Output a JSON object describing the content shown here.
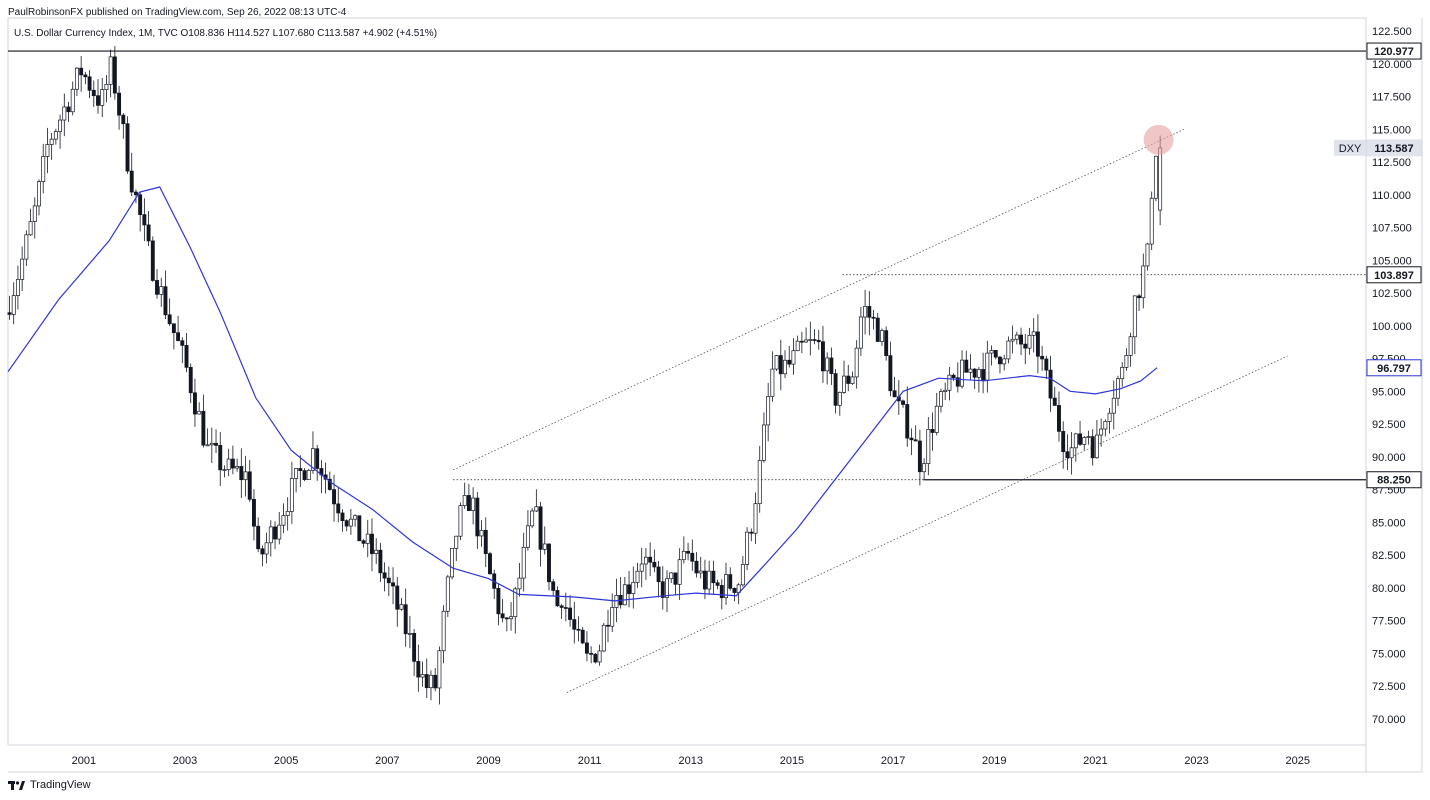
{
  "header": {
    "publisher_line": "PaulRobinsonFX published on TradingView.com, Sep 26, 2022 08:13 UTC-4",
    "symbol_line": "U.S. Dollar Currency Index, 1M, TVC  O108.836  H114.527  L107.680  C113.587  +4.902 (+4.51%)"
  },
  "footer": {
    "brand": "TradingView",
    "logo_icon": "tradingview-logo-icon"
  },
  "colors": {
    "ma_line": "#2e35d8",
    "candle": "#131722",
    "grid_border": "#d1d4dc",
    "circle_highlight": "#e8a0a0",
    "badge_ma": "#2e35d8",
    "badge_price": "#e0e3eb"
  },
  "chart_data": {
    "type": "candlestick",
    "instrument": "DXY",
    "timeframe": "1M",
    "x_range": [
      2000.0,
      2026.85
    ],
    "ylim": [
      68.0,
      123.5
    ],
    "x_ticks": [
      "2001",
      "2003",
      "2005",
      "2007",
      "2009",
      "2011",
      "2013",
      "2015",
      "2017",
      "2019",
      "2021",
      "2023",
      "2025"
    ],
    "y_ticks": [
      "70.000",
      "72.500",
      "75.000",
      "77.500",
      "80.000",
      "82.500",
      "85.000",
      "87.500",
      "90.000",
      "92.500",
      "95.000",
      "97.500",
      "100.000",
      "102.500",
      "105.000",
      "107.500",
      "110.000",
      "112.500",
      "115.000",
      "117.500",
      "120.000",
      "122.500"
    ],
    "price_anchors": [
      [
        2000.0,
        101.0
      ],
      [
        2000.3,
        104.5
      ],
      [
        2000.6,
        109.0
      ],
      [
        2000.85,
        114.0
      ],
      [
        2001.1,
        116.0
      ],
      [
        2001.5,
        119.5
      ],
      [
        2001.9,
        117.0
      ],
      [
        2002.1,
        119.8
      ],
      [
        2002.45,
        112.0
      ],
      [
        2002.8,
        106.0
      ],
      [
        2003.2,
        101.0
      ],
      [
        2003.6,
        96.5
      ],
      [
        2004.0,
        90.5
      ],
      [
        2004.4,
        89.0
      ],
      [
        2004.8,
        88.5
      ],
      [
        2005.0,
        82.0
      ],
      [
        2005.3,
        84.5
      ],
      [
        2005.8,
        88.5
      ],
      [
        2006.1,
        90.5
      ],
      [
        2006.5,
        87.0
      ],
      [
        2006.9,
        84.5
      ],
      [
        2007.3,
        82.5
      ],
      [
        2007.7,
        79.0
      ],
      [
        2008.0,
        76.0
      ],
      [
        2008.3,
        72.5
      ],
      [
        2008.5,
        72.5
      ],
      [
        2008.75,
        80.0
      ],
      [
        2008.95,
        85.0
      ],
      [
        2009.2,
        87.0
      ],
      [
        2009.5,
        82.0
      ],
      [
        2009.9,
        76.5
      ],
      [
        2010.1,
        79.5
      ],
      [
        2010.45,
        86.0
      ],
      [
        2010.7,
        82.0
      ],
      [
        2010.9,
        78.5
      ],
      [
        2011.0,
        79.5
      ],
      [
        2011.3,
        76.0
      ],
      [
        2011.5,
        74.5
      ],
      [
        2011.75,
        75.5
      ],
      [
        2012.0,
        79.5
      ],
      [
        2012.3,
        80.0
      ],
      [
        2012.6,
        82.5
      ],
      [
        2012.9,
        80.0
      ],
      [
        2013.1,
        80.0
      ],
      [
        2013.5,
        82.5
      ],
      [
        2013.8,
        80.5
      ],
      [
        2014.1,
        80.0
      ],
      [
        2014.5,
        80.5
      ],
      [
        2014.75,
        85.0
      ],
      [
        2014.95,
        90.0
      ],
      [
        2015.15,
        96.5
      ],
      [
        2015.5,
        97.0
      ],
      [
        2015.8,
        98.5
      ],
      [
        2016.1,
        98.5
      ],
      [
        2016.4,
        94.5
      ],
      [
        2016.75,
        96.5
      ],
      [
        2016.95,
        101.5
      ],
      [
        2017.3,
        99.5
      ],
      [
        2017.6,
        94.0
      ],
      [
        2017.9,
        92.0
      ],
      [
        2018.1,
        89.5
      ],
      [
        2018.4,
        93.5
      ],
      [
        2018.8,
        96.0
      ],
      [
        2019.0,
        96.5
      ],
      [
        2019.4,
        97.0
      ],
      [
        2019.8,
        98.5
      ],
      [
        2020.2,
        98.5
      ],
      [
        2020.4,
        98.5
      ],
      [
        2020.6,
        95.5
      ],
      [
        2020.9,
        91.5
      ],
      [
        2021.1,
        90.5
      ],
      [
        2021.4,
        92.0
      ],
      [
        2021.55,
        90.5
      ],
      [
        2021.75,
        93.5
      ],
      [
        2021.95,
        95.5
      ],
      [
        2022.1,
        96.5
      ],
      [
        2022.3,
        101.5
      ],
      [
        2022.45,
        103.5
      ],
      [
        2022.6,
        105.5
      ],
      [
        2022.65,
        109.5
      ],
      [
        2022.72,
        113.6
      ]
    ],
    "moving_average": [
      [
        2000.0,
        96.5
      ],
      [
        2001.0,
        102.0
      ],
      [
        2002.0,
        106.5
      ],
      [
        2002.6,
        110.2
      ],
      [
        2003.0,
        110.6
      ],
      [
        2003.6,
        106.0
      ],
      [
        2004.2,
        101.0
      ],
      [
        2004.9,
        94.5
      ],
      [
        2005.6,
        90.5
      ],
      [
        2006.4,
        88.0
      ],
      [
        2007.2,
        86.0
      ],
      [
        2008.0,
        83.5
      ],
      [
        2008.8,
        81.5
      ],
      [
        2009.5,
        80.7
      ],
      [
        2010.1,
        79.5
      ],
      [
        2011.2,
        79.3
      ],
      [
        2012.0,
        79.0
      ],
      [
        2013.0,
        79.4
      ],
      [
        2013.6,
        79.6
      ],
      [
        2014.4,
        79.4
      ],
      [
        2014.9,
        81.5
      ],
      [
        2015.6,
        84.5
      ],
      [
        2016.3,
        88.0
      ],
      [
        2017.0,
        91.5
      ],
      [
        2017.7,
        95.0
      ],
      [
        2018.4,
        96.0
      ],
      [
        2019.3,
        95.8
      ],
      [
        2020.2,
        96.2
      ],
      [
        2020.6,
        96.0
      ],
      [
        2021.0,
        95.0
      ],
      [
        2021.5,
        94.8
      ],
      [
        2022.0,
        95.2
      ],
      [
        2022.4,
        95.8
      ],
      [
        2022.72,
        96.8
      ]
    ],
    "channel": {
      "upper": [
        [
          2008.8,
          89.0
        ],
        [
          2023.25,
          115.0
        ]
      ],
      "lower": [
        [
          2011.05,
          72.0
        ],
        [
          2025.3,
          97.7
        ]
      ]
    },
    "horizontal_levels": [
      {
        "y": 120.977,
        "style": "solid",
        "x_start": 2000.0
      },
      {
        "y": 103.897,
        "style": "dotted",
        "x_start": 2016.5
      },
      {
        "y": 88.25,
        "style": "dotted",
        "x_start": 2008.8,
        "x_end": 2018.1
      },
      {
        "y": 88.25,
        "style": "solid",
        "x_start": 2018.1
      }
    ],
    "highlight_circle": {
      "x": 2022.72,
      "y": 114.2
    },
    "price_badges": [
      {
        "label": "120.977",
        "y": 120.977,
        "kind": "level"
      },
      {
        "label": "103.897",
        "y": 103.897,
        "kind": "level"
      },
      {
        "label": "88.250",
        "y": 88.25,
        "kind": "level"
      },
      {
        "label": "96.797",
        "y": 96.797,
        "kind": "ma"
      },
      {
        "label": "113.587",
        "y": 113.587,
        "kind": "price",
        "symbol": "DXY"
      }
    ]
  }
}
